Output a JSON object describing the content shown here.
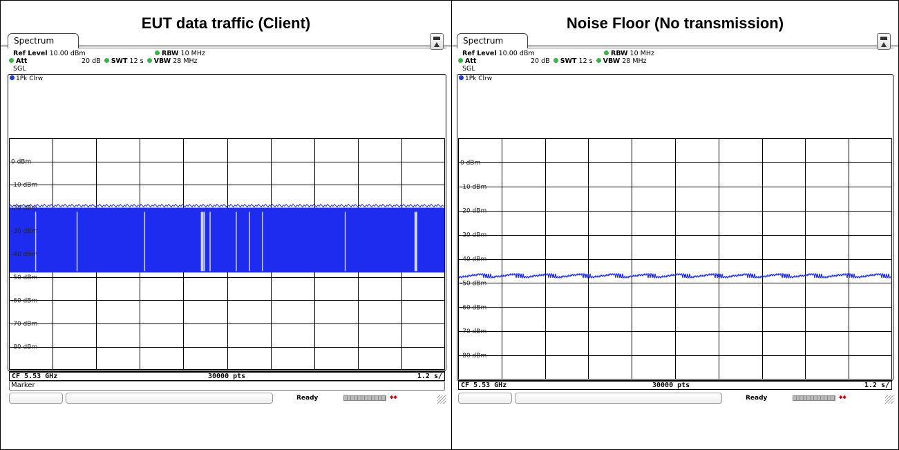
{
  "panels": [
    {
      "header": "EUT data traffic (Client)",
      "tab": "Spectrum",
      "settings": {
        "ref_level_label": "Ref Level",
        "ref_level_value": "10.00 dBm",
        "att_label": "Att",
        "att_value": "20 dB",
        "swt_label": "SWT",
        "swt_value": "12 s",
        "rbw_label": "RBW",
        "rbw_value": "10 MHz",
        "vbw_label": "VBW",
        "vbw_value": "28 MHz",
        "mode": "SGL"
      },
      "trace_label": "1Pk Clrw",
      "y_ticks": [
        "0 dBm",
        "-10 dBm",
        "-20 dBm",
        "-30 dBm",
        "-40 dBm",
        "-50 dBm",
        "-60 dBm",
        "-70 dBm",
        "-80 dBm"
      ],
      "footer": {
        "cf": "CF 5.53 GHz",
        "pts": "30000 pts",
        "span": "1.2 s/"
      },
      "marker_label": "Marker",
      "status": "Ready"
    },
    {
      "header": "Noise Floor (No transmission)",
      "tab": "Spectrum",
      "settings": {
        "ref_level_label": "Ref Level",
        "ref_level_value": "10.00 dBm",
        "att_label": "Att",
        "att_value": "20 dB",
        "swt_label": "SWT",
        "swt_value": "12 s",
        "rbw_label": "RBW",
        "rbw_value": "10 MHz",
        "vbw_label": "VBW",
        "vbw_value": "28 MHz",
        "mode": "SGL"
      },
      "trace_label": "1Pk Clrw",
      "y_ticks": [
        "0 dBm",
        "-10 dBm",
        "-20 dBm",
        "-30 dBm",
        "-40 dBm",
        "-50 dBm",
        "-60 dBm",
        "-70 dBm",
        "-80 dBm"
      ],
      "footer": {
        "cf": "CF 5.53 GHz",
        "pts": "30000 pts",
        "span": "1.2 s/"
      },
      "status": "Ready"
    }
  ],
  "chart_data": [
    {
      "type": "area",
      "title": "EUT data traffic (Client)",
      "ylim": [
        -90,
        10
      ],
      "ytick_values": [
        0,
        -10,
        -20,
        -30,
        -40,
        -50,
        -60,
        -70,
        -80
      ],
      "trace_top_dbm": -20,
      "trace_bottom_dbm": -48,
      "gap_positions_fraction": [
        0.06,
        0.155,
        0.31,
        0.44,
        0.447,
        0.46,
        0.52,
        0.55,
        0.58,
        0.77,
        0.93
      ],
      "color": "#1e2cf0"
    },
    {
      "type": "line",
      "title": "Noise Floor (No transmission)",
      "ylim": [
        -90,
        10
      ],
      "ytick_values": [
        0,
        -10,
        -20,
        -30,
        -40,
        -50,
        -60,
        -70,
        -80
      ],
      "noise_floor_dbm": -47,
      "color": "#1e2cf0"
    }
  ]
}
